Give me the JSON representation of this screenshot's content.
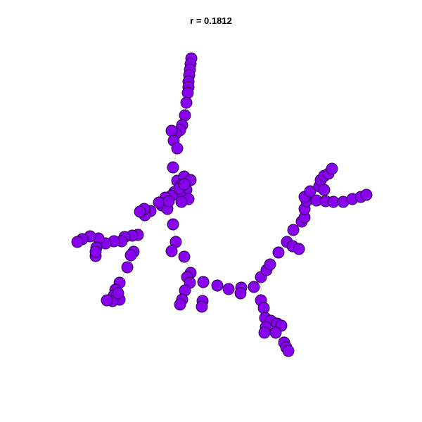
{
  "title": "r = 0.1812",
  "node_color": "#8800ee",
  "node_stroke": "#1a0033",
  "edge_color": "#c8c8c8"
}
